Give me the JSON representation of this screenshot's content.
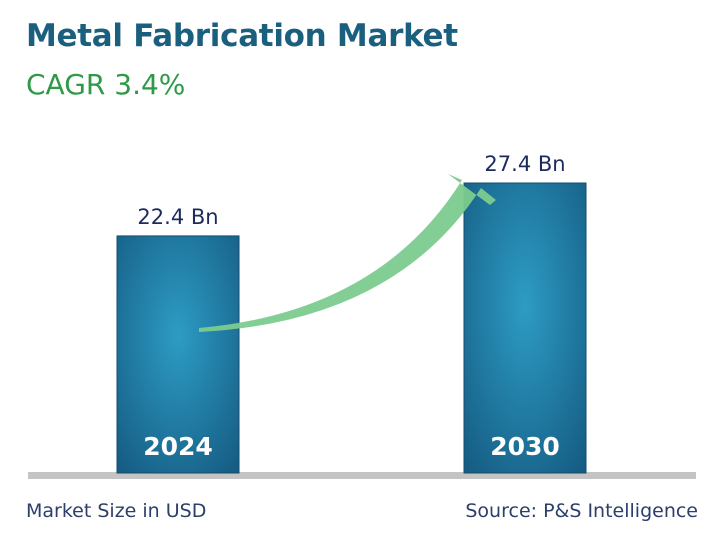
{
  "chart_data": {
    "type": "bar",
    "title": "Metal Fabrication Market",
    "subtitle": "CAGR 3.4%",
    "categories": [
      "2024",
      "2030"
    ],
    "values": [
      22.4,
      27.4
    ],
    "value_labels": [
      "22.4 Bn",
      "27.4 Bn"
    ],
    "unit": "Bn",
    "ylim": [
      0,
      30
    ],
    "grid": false,
    "legend": "none",
    "footnote_left": "Market Size in USD",
    "footnote_right": "Source: P&S Intelligence"
  },
  "colors": {
    "title": "#1b5f7f",
    "subtitle": "#2e9a48",
    "bar_light": "#2d9cc4",
    "bar_dark": "#155b82",
    "bar_edge": "#124d6e",
    "arrow": "#7ccb8e",
    "value_label": "#1c2b5c",
    "category_label": "#ffffff",
    "baseline": "#c4c4c4",
    "footer": "#2c3e6a"
  }
}
